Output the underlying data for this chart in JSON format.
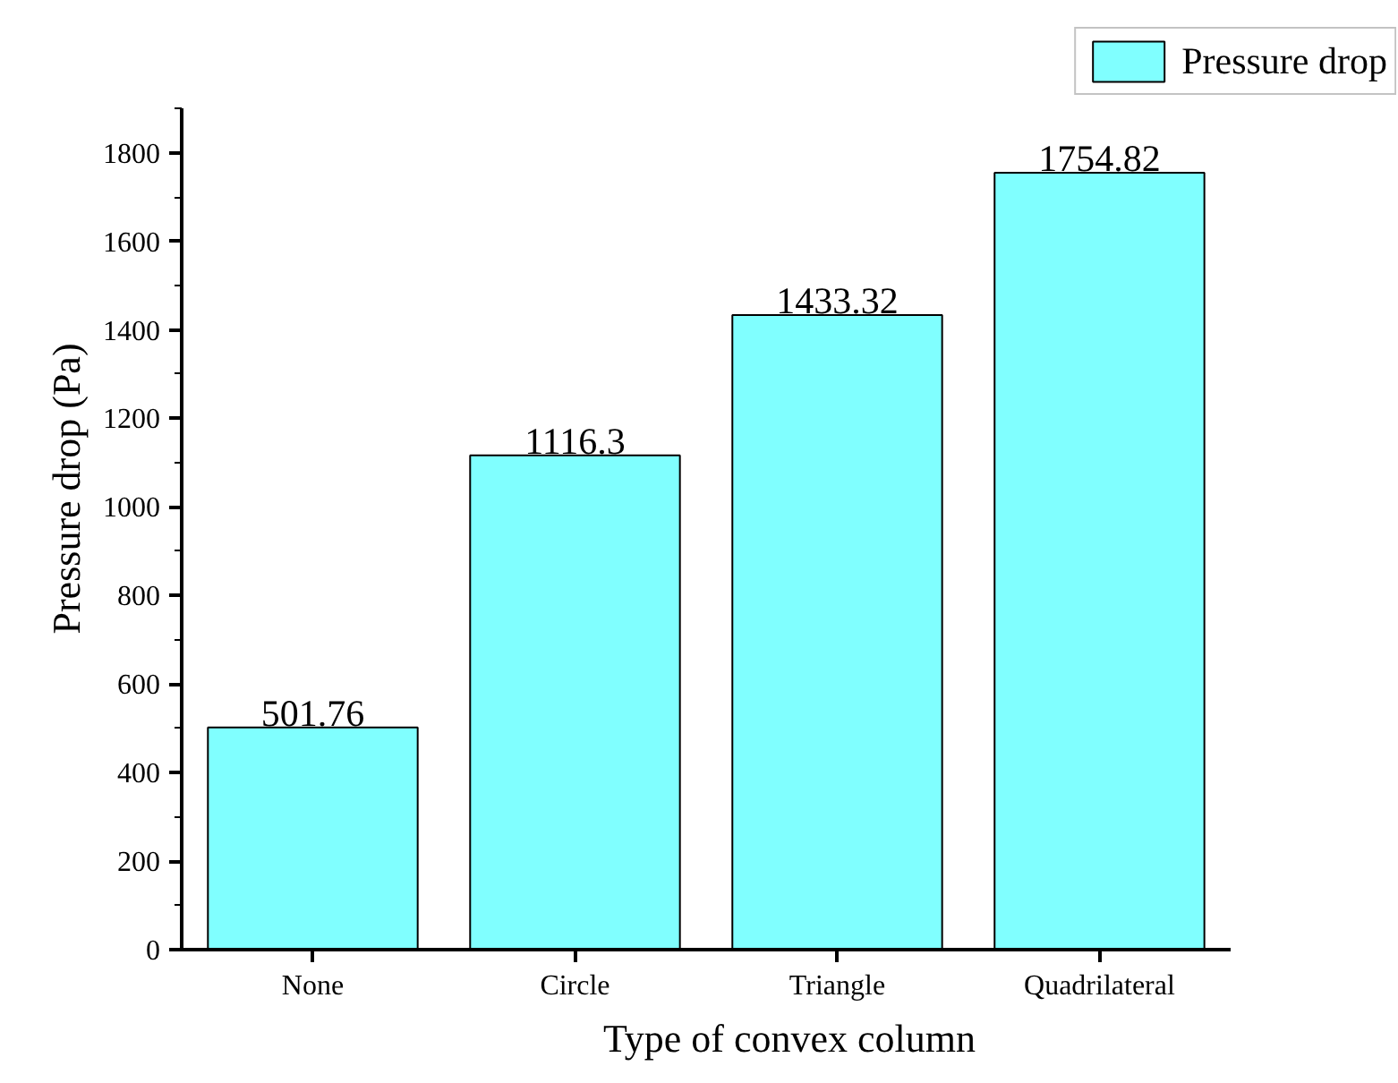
{
  "chart_data": {
    "type": "bar",
    "xlabel": "Type of convex column",
    "ylabel": "Pressure drop (Pa)",
    "categories": [
      "None",
      "Circle",
      "Triangle",
      "Quadrilateral"
    ],
    "series": [
      {
        "name": "Pressure drop",
        "color": "#80ffff",
        "values": [
          501.76,
          1116.3,
          1433.32,
          1754.82
        ]
      }
    ],
    "ylim": [
      0,
      1900
    ],
    "yticks": [
      0,
      200,
      400,
      600,
      800,
      1000,
      1200,
      1400,
      1600,
      1800
    ],
    "data_labels": true,
    "grid": false,
    "legend": "top right"
  }
}
